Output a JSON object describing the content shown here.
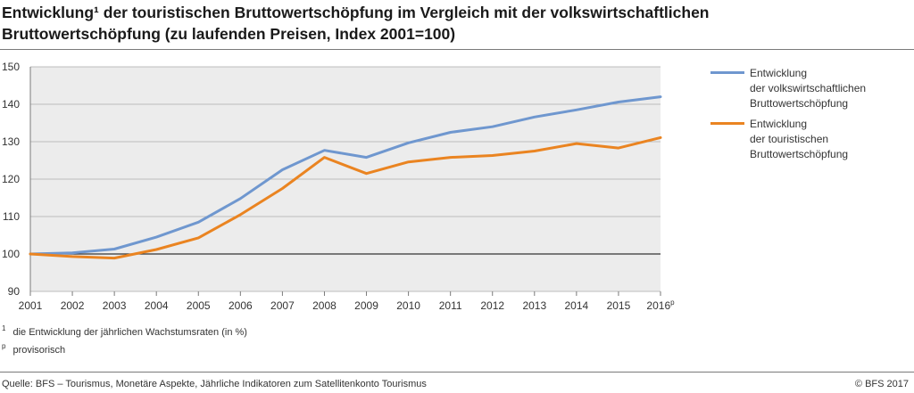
{
  "title_line1": "Entwicklung¹ der touristischen Bruttowertschöpfung im Vergleich mit der volkswirtschaftlichen",
  "title_line2": "Bruttowertschöpfung (zu laufenden Preisen, Index 2001=100)",
  "notes": [
    {
      "mark": "1",
      "text": "die Entwicklung der jährlichen Wachstumsraten (in %)"
    },
    {
      "mark": "p",
      "text": "provisorisch"
    }
  ],
  "source": "Quelle: BFS – Tourismus, Monetäre Aspekte, Jährliche Indikatoren zum Satellitenkonto Tourismus",
  "copyright": "© BFS 2017",
  "chart_data": {
    "type": "line",
    "x": [
      "2001",
      "2002",
      "2003",
      "2004",
      "2005",
      "2006",
      "2007",
      "2008",
      "2009",
      "2010",
      "2011",
      "2012",
      "2013",
      "2014",
      "2015",
      "2016"
    ],
    "last_tick_suffix": "p",
    "ylim": [
      90,
      150
    ],
    "yticks": [
      90,
      100,
      110,
      120,
      130,
      140,
      150
    ],
    "grid": true,
    "plot_background": "#ececec",
    "baseline": 100,
    "legend_position": "right",
    "series": [
      {
        "name": "Entwicklung\nder volkswirtschaftlichen\nBruttowertschöpfung",
        "color": "#6f97cf",
        "values": [
          100,
          100.3,
          101.3,
          104.5,
          108.5,
          114.8,
          122.5,
          127.7,
          125.8,
          129.7,
          132.5,
          134.0,
          136.6,
          138.5,
          140.6,
          142.0
        ]
      },
      {
        "name": "Entwicklung\nder touristischen\nBruttowertschöpfung",
        "color": "#ea8421",
        "values": [
          100,
          99.3,
          98.9,
          101.2,
          104.3,
          110.5,
          117.5,
          125.8,
          121.5,
          124.6,
          125.8,
          126.3,
          127.5,
          129.5,
          128.3,
          131.1
        ]
      }
    ]
  }
}
